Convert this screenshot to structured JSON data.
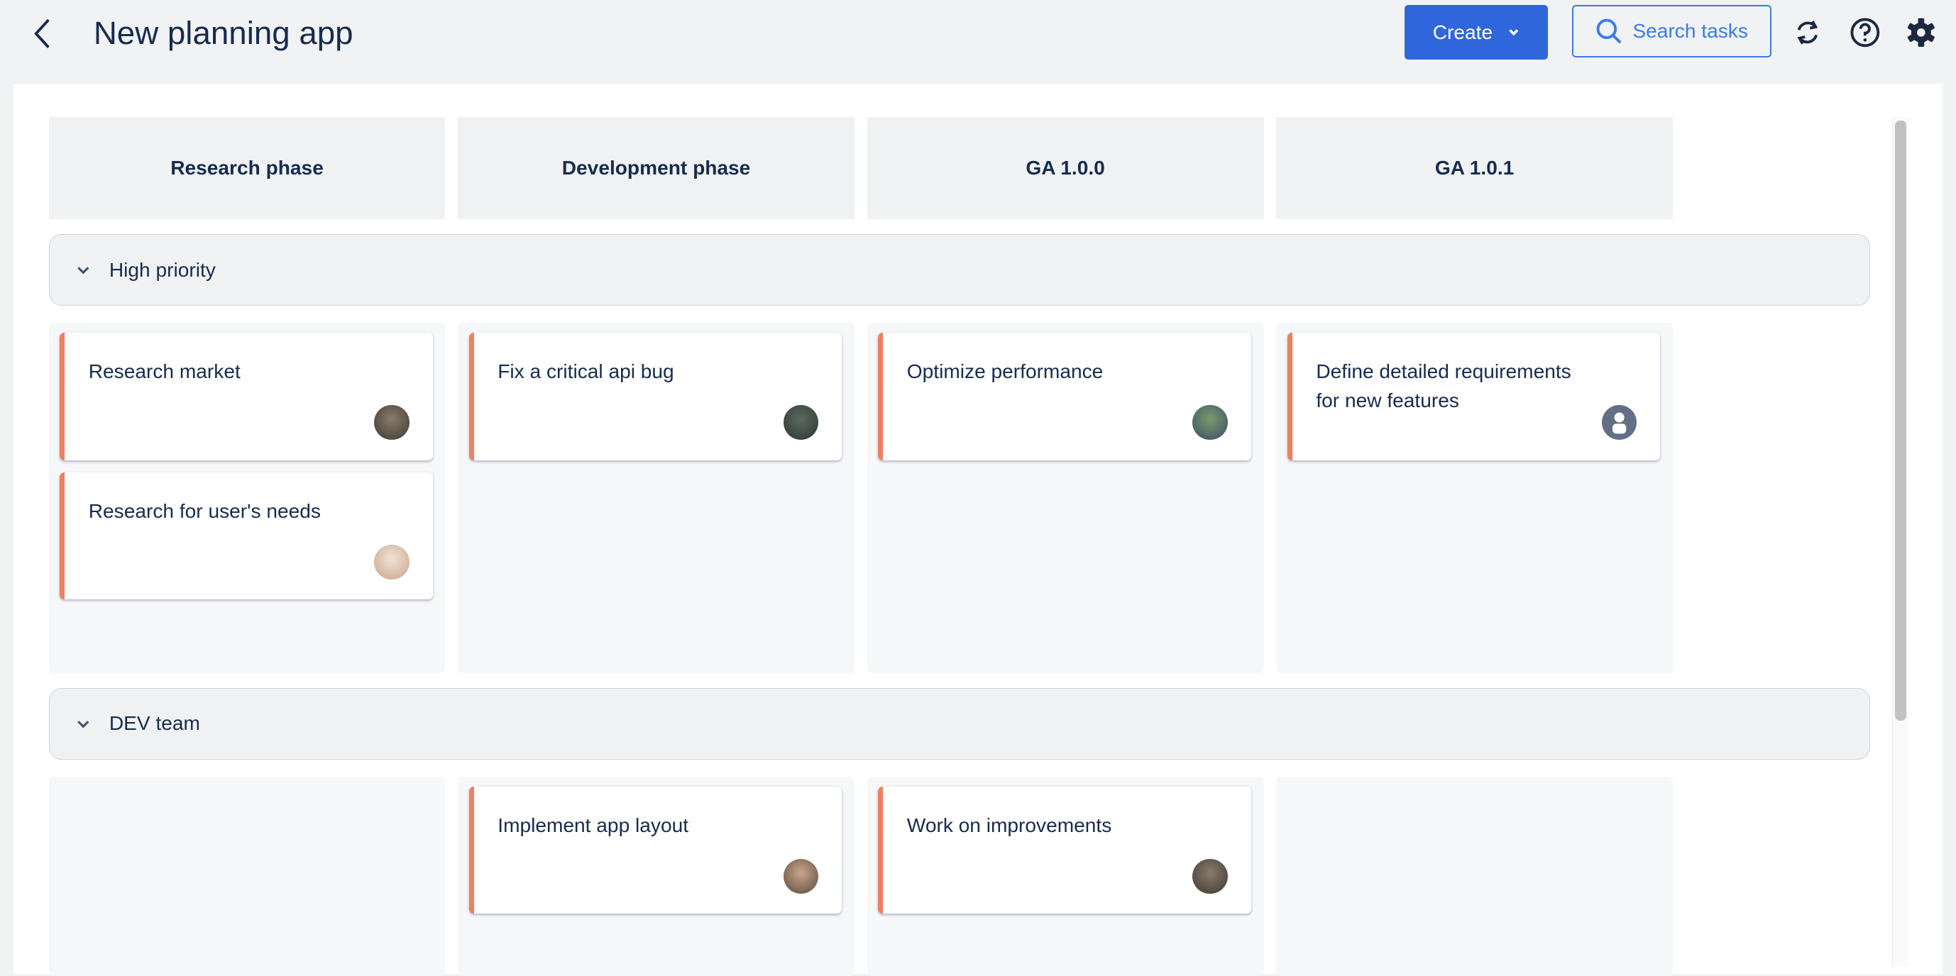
{
  "header": {
    "title": "New planning app",
    "create_label": "Create",
    "search_label": "Search tasks",
    "icons": [
      "back-chevron-icon",
      "chevron-down-icon",
      "search-icon",
      "sync-icon",
      "help-icon",
      "gear-icon"
    ]
  },
  "colors": {
    "primary": "#2f66db",
    "accent_border": "#f07f5f",
    "text": "#172b4d"
  },
  "columns": [
    "Research phase",
    "Development phase",
    "GA 1.0.0",
    "GA 1.0.1"
  ],
  "groups": [
    {
      "label": "High priority",
      "cells": [
        [
          {
            "title": "Research market",
            "avatar": "photo"
          },
          {
            "title": "Research for user's needs",
            "avatar": "photo"
          }
        ],
        [
          {
            "title": "Fix a critical api bug",
            "avatar": "photo"
          }
        ],
        [
          {
            "title": "Optimize performance",
            "avatar": "photo"
          }
        ],
        [
          {
            "title": "Define detailed requirements for new features",
            "avatar": "default-user-icon"
          }
        ]
      ]
    },
    {
      "label": "DEV team",
      "cells": [
        [],
        [
          {
            "title": "Implement app layout",
            "avatar": "photo"
          }
        ],
        [
          {
            "title": "Work on improvements",
            "avatar": "photo"
          }
        ],
        []
      ]
    }
  ]
}
